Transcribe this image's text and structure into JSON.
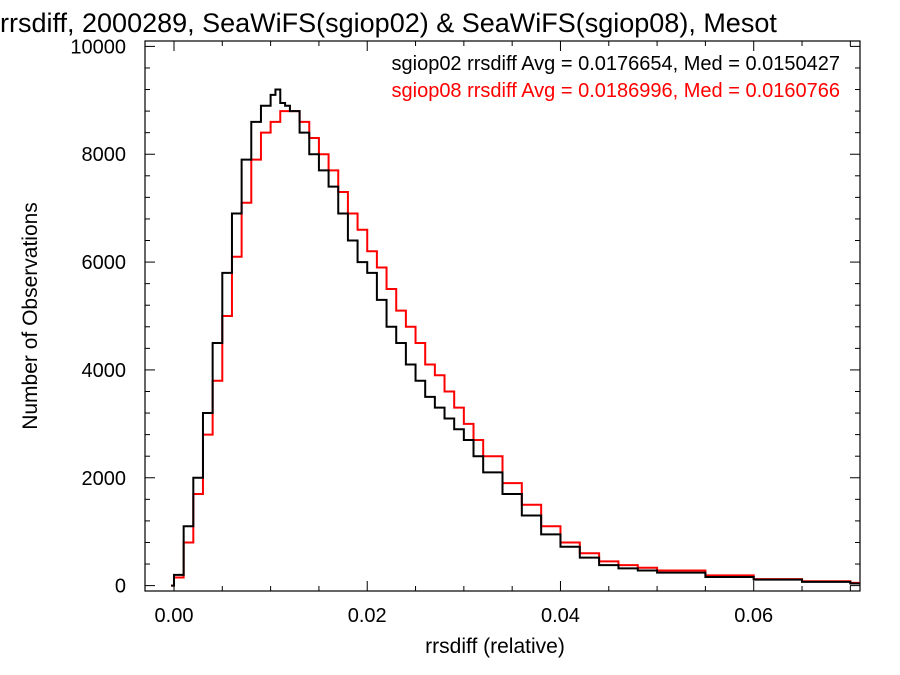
{
  "chart_data": {
    "type": "line",
    "title": "rrsdiff, 2000289, SeaWiFS(sgiop02) & SeaWiFS(sgiop08), Mesot",
    "xlabel": "rrsdiff (relative)",
    "ylabel": "Number of Observations",
    "xlim": [
      -0.003,
      0.071
    ],
    "ylim": [
      -100,
      10100
    ],
    "xticks": [
      0.0,
      0.02,
      0.04,
      0.06
    ],
    "xtick_labels": [
      "0.00",
      "0.02",
      "0.04",
      "0.06"
    ],
    "yticks": [
      0,
      2000,
      4000,
      6000,
      8000,
      10000
    ],
    "ytick_labels": [
      "0",
      "2000",
      "4000",
      "6000",
      "8000",
      "10000"
    ],
    "grid": false,
    "legend_position": "top-right",
    "annotations": [
      {
        "text": "sgiop02 rrsdiff Avg = 0.0176654, Med = 0.0150427",
        "color": "#000000"
      },
      {
        "text": "sgiop08 rrsdiff Avg = 0.0186996, Med = 0.0160766",
        "color": "#ff0000"
      }
    ],
    "series": [
      {
        "name": "sgiop02",
        "color": "#000000",
        "x": [
          -0.0003,
          0.0,
          0.001,
          0.002,
          0.003,
          0.004,
          0.005,
          0.006,
          0.007,
          0.008,
          0.009,
          0.01,
          0.0105,
          0.011,
          0.0115,
          0.012,
          0.013,
          0.014,
          0.015,
          0.016,
          0.017,
          0.018,
          0.019,
          0.02,
          0.021,
          0.022,
          0.023,
          0.024,
          0.025,
          0.026,
          0.027,
          0.028,
          0.029,
          0.03,
          0.031,
          0.032,
          0.034,
          0.036,
          0.038,
          0.04,
          0.042,
          0.044,
          0.046,
          0.048,
          0.05,
          0.055,
          0.06,
          0.065,
          0.07
        ],
        "y": [
          0,
          200,
          1100,
          2000,
          3200,
          4500,
          5800,
          6900,
          7900,
          8600,
          8900,
          9100,
          9200,
          8950,
          8900,
          8800,
          8400,
          8000,
          7700,
          7400,
          6900,
          6400,
          6000,
          5800,
          5300,
          4800,
          4500,
          4100,
          3800,
          3500,
          3300,
          3100,
          2900,
          2700,
          2400,
          2100,
          1700,
          1300,
          950,
          720,
          520,
          380,
          320,
          280,
          240,
          160,
          110,
          70,
          40
        ]
      },
      {
        "name": "sgiop08",
        "color": "#ff0000",
        "x": [
          -0.0003,
          0.0,
          0.001,
          0.002,
          0.003,
          0.004,
          0.005,
          0.006,
          0.007,
          0.008,
          0.009,
          0.01,
          0.011,
          0.012,
          0.013,
          0.014,
          0.015,
          0.016,
          0.017,
          0.018,
          0.019,
          0.02,
          0.021,
          0.022,
          0.023,
          0.024,
          0.025,
          0.026,
          0.027,
          0.028,
          0.029,
          0.03,
          0.031,
          0.032,
          0.034,
          0.036,
          0.038,
          0.04,
          0.042,
          0.044,
          0.046,
          0.048,
          0.05,
          0.055,
          0.06,
          0.065,
          0.07
        ],
        "y": [
          0,
          150,
          800,
          1700,
          2800,
          3800,
          5000,
          6100,
          7100,
          7900,
          8400,
          8600,
          8800,
          8800,
          8600,
          8300,
          8000,
          7700,
          7300,
          6900,
          6600,
          6200,
          5900,
          5500,
          5100,
          4800,
          4500,
          4100,
          3900,
          3600,
          3300,
          3000,
          2700,
          2400,
          1900,
          1500,
          1100,
          800,
          600,
          450,
          380,
          330,
          280,
          190,
          120,
          80,
          50
        ]
      }
    ]
  }
}
